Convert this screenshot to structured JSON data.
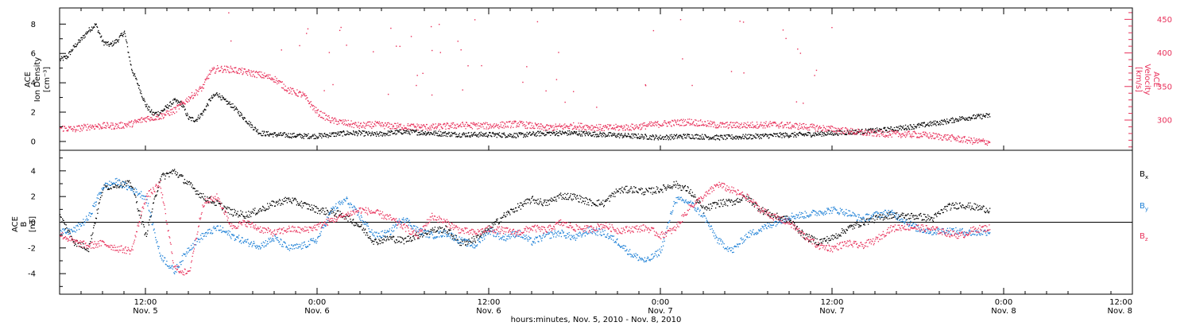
{
  "chart_data": [
    {
      "type": "scatter",
      "panel": "top",
      "ylabel_lines": [
        "ACE",
        "Ion Density",
        "[cm⁻³]"
      ],
      "ylim": [
        -0.6,
        9.1
      ],
      "yticks": [
        0,
        2,
        4,
        6,
        8
      ],
      "y2label_lines": [
        "ACE",
        "Velocity",
        "[km/s]"
      ],
      "y2lim": [
        255,
        467
      ],
      "y2ticks": [
        300,
        350,
        400,
        450
      ],
      "series": [
        {
          "label": "Ion Density",
          "axis": "left",
          "color": "#000000",
          "x": [
            0,
            1,
            2,
            3,
            4,
            5,
            6,
            7,
            8,
            9,
            10,
            11,
            12,
            13,
            14,
            15,
            16,
            17,
            18,
            19,
            20,
            21,
            22,
            23,
            24,
            25,
            26,
            27,
            28,
            30,
            32,
            34,
            36,
            38,
            40,
            42,
            44,
            46,
            48,
            52,
            56,
            60,
            64,
            68,
            72,
            76,
            80,
            84,
            88,
            92,
            96,
            100,
            104,
            108,
            112,
            116,
            120,
            122,
            124,
            126,
            128,
            130
          ],
          "values": [
            5.6,
            5.8,
            6.5,
            7.0,
            7.6,
            8.0,
            6.8,
            6.6,
            6.9,
            7.5,
            5.0,
            3.8,
            2.5,
            1.9,
            2.0,
            2.4,
            2.8,
            2.6,
            1.6,
            1.5,
            2.0,
            2.9,
            3.3,
            2.8,
            2.5,
            2.0,
            1.5,
            1.0,
            0.6,
            0.5,
            0.45,
            0.4,
            0.4,
            0.5,
            0.6,
            0.6,
            0.5,
            0.6,
            0.7,
            0.6,
            0.5,
            0.5,
            0.45,
            0.6,
            0.6,
            0.5,
            0.4,
            0.3,
            0.4,
            0.3,
            0.35,
            0.45,
            0.5,
            0.6,
            0.7,
            0.85,
            1.1,
            1.25,
            1.4,
            1.6,
            1.7,
            1.8
          ]
        },
        {
          "label": "Velocity",
          "axis": "right",
          "color": "#e8305a",
          "x": [
            0,
            2,
            4,
            6,
            8,
            10,
            12,
            14,
            16,
            18,
            20,
            21,
            22,
            24,
            26,
            28,
            30,
            32,
            34,
            36,
            38,
            40,
            42,
            44,
            46,
            48,
            52,
            56,
            60,
            64,
            68,
            72,
            76,
            80,
            84,
            88,
            92,
            96,
            100,
            104,
            108,
            112,
            116,
            120,
            124,
            128,
            130
          ],
          "values": [
            289,
            287,
            291,
            292,
            292,
            295,
            303,
            306,
            315,
            333,
            350,
            372,
            377,
            376,
            372,
            368,
            362,
            345,
            338,
            312,
            300,
            296,
            292,
            294,
            292,
            291,
            290,
            293,
            292,
            295,
            289,
            292,
            289,
            290,
            295,
            298,
            293,
            293,
            294,
            291,
            287,
            282,
            280,
            279,
            275,
            269,
            268
          ]
        }
      ]
    },
    {
      "type": "scatter",
      "panel": "bottom",
      "ylabel_lines": [
        "ACE",
        "B",
        "[nT]"
      ],
      "ylim": [
        -5.6,
        5.6
      ],
      "yticks": [
        -4,
        -2,
        0,
        2,
        4
      ],
      "zero_line": true,
      "legend": [
        "Bx",
        "By",
        "Bz"
      ],
      "legend_placement": "right",
      "series": [
        {
          "label": "Bx",
          "color": "#000000",
          "x": [
            0,
            2,
            4,
            6,
            8,
            10,
            12,
            14,
            16,
            18,
            20,
            22,
            24,
            26,
            28,
            30,
            32,
            34,
            36,
            38,
            40,
            42,
            44,
            46,
            48,
            50,
            52,
            54,
            56,
            58,
            60,
            62,
            64,
            66,
            68,
            70,
            72,
            74,
            76,
            78,
            80,
            82,
            84,
            86,
            88,
            90,
            92,
            94,
            96,
            98,
            100,
            102,
            104,
            106,
            108,
            110,
            112,
            114,
            116,
            118,
            120,
            122,
            124,
            126,
            128,
            130
          ],
          "values": [
            0.5,
            -1.5,
            -2.0,
            2.7,
            3.0,
            3.0,
            -1.0,
            3.5,
            4.0,
            3.0,
            2.0,
            1.5,
            0.8,
            0.6,
            1.0,
            1.5,
            1.8,
            1.4,
            1.0,
            0.8,
            0.5,
            -0.3,
            -1.5,
            -1.2,
            -1.4,
            -1.0,
            -0.6,
            -0.5,
            -1.6,
            -1.3,
            -0.5,
            0.5,
            1.2,
            1.8,
            1.5,
            2.1,
            2.0,
            1.6,
            1.5,
            2.5,
            2.6,
            2.4,
            2.6,
            3.0,
            2.5,
            1.0,
            1.5,
            1.6,
            2.0,
            1.0,
            0.5,
            0.2,
            -1.0,
            -1.5,
            -1.2,
            -0.5,
            0.0,
            0.3,
            0.6,
            0.5,
            0.5,
            0.3,
            1.2,
            1.4,
            1.2,
            1.0
          ]
        },
        {
          "label": "By",
          "color": "#1b7fd6",
          "x": [
            0,
            2,
            4,
            6,
            8,
            10,
            12,
            14,
            16,
            18,
            20,
            22,
            24,
            26,
            28,
            30,
            32,
            34,
            36,
            38,
            40,
            42,
            44,
            46,
            48,
            50,
            52,
            54,
            56,
            58,
            60,
            62,
            64,
            66,
            68,
            70,
            72,
            74,
            76,
            78,
            80,
            82,
            84,
            86,
            88,
            90,
            92,
            94,
            96,
            98,
            100,
            102,
            104,
            106,
            108,
            110,
            112,
            114,
            116,
            118,
            120,
            122,
            124,
            126,
            128,
            130
          ],
          "values": [
            -0.8,
            -0.6,
            0.4,
            2.8,
            3.2,
            2.6,
            2.0,
            -2.5,
            -3.8,
            -2.0,
            -1.0,
            -0.4,
            -1.0,
            -1.5,
            -1.8,
            -1.2,
            -2.0,
            -1.8,
            -1.3,
            1.0,
            1.8,
            0.4,
            -1.0,
            -0.8,
            0.4,
            -0.6,
            -1.0,
            -0.8,
            -1.4,
            -1.8,
            -0.6,
            -1.2,
            -0.8,
            -1.5,
            -1.0,
            -0.8,
            -1.2,
            -0.6,
            -0.8,
            -1.5,
            -2.5,
            -3.0,
            -2.2,
            1.8,
            1.6,
            0.5,
            -1.4,
            -2.2,
            -1.0,
            -0.5,
            0.0,
            0.5,
            0.6,
            0.8,
            1.0,
            0.8,
            0.3,
            0.6,
            0.8,
            0.2,
            -0.5,
            -0.7,
            -0.6,
            -0.7,
            -0.8,
            -0.7
          ]
        },
        {
          "label": "Bz",
          "color": "#e8305a",
          "x": [
            0,
            2,
            4,
            6,
            8,
            10,
            12,
            14,
            16,
            18,
            20,
            22,
            24,
            26,
            28,
            30,
            32,
            34,
            36,
            38,
            40,
            42,
            44,
            46,
            48,
            50,
            52,
            54,
            56,
            58,
            60,
            62,
            64,
            66,
            68,
            70,
            72,
            74,
            76,
            78,
            80,
            82,
            84,
            86,
            88,
            90,
            92,
            94,
            96,
            98,
            100,
            102,
            104,
            106,
            108,
            110,
            112,
            114,
            116,
            118,
            120,
            122,
            124,
            126,
            128,
            130
          ],
          "values": [
            -0.9,
            -1.5,
            -1.8,
            -1.6,
            -2.0,
            -2.2,
            2.0,
            3.0,
            -3.5,
            -4.0,
            1.5,
            2.0,
            -0.3,
            0.0,
            -0.5,
            -0.8,
            -0.5,
            -0.6,
            -0.3,
            0.2,
            0.6,
            1.0,
            0.8,
            0.4,
            -0.3,
            -1.0,
            0.5,
            0.0,
            -0.6,
            -0.8,
            -0.5,
            -0.6,
            -0.8,
            -0.4,
            -0.6,
            0.0,
            -0.4,
            -0.5,
            -0.2,
            -0.6,
            -0.5,
            -0.4,
            -1.0,
            -0.5,
            1.2,
            2.0,
            3.0,
            2.5,
            2.0,
            1.0,
            0.4,
            0.0,
            -1.0,
            -1.8,
            -2.0,
            -1.6,
            -1.8,
            -1.4,
            -0.5,
            -0.3,
            -0.4,
            -0.5,
            -0.8,
            -1.0,
            -0.5,
            -0.4
          ]
        }
      ]
    }
  ],
  "time_axis": {
    "xlim": [
      0,
      150
    ],
    "ticks": [
      {
        "x": 12,
        "top": "12:00",
        "bottom": "Nov. 5"
      },
      {
        "x": 36,
        "top": "0:00",
        "bottom": "Nov. 6"
      },
      {
        "x": 60,
        "top": "12:00",
        "bottom": "Nov. 6"
      },
      {
        "x": 84,
        "top": "0:00",
        "bottom": "Nov. 7"
      },
      {
        "x": 108,
        "top": "12:00",
        "bottom": "Nov. 7"
      },
      {
        "x": 132,
        "top": "0:00",
        "bottom": "Nov. 8"
      },
      {
        "x": 156,
        "top": "12:00",
        "bottom": "Nov. 8"
      }
    ],
    "xlabel": "hours:minutes, Nov.  5, 2010 - Nov.  8, 2010"
  },
  "legend_labels": {
    "bx": {
      "main": "B",
      "sub": "x"
    },
    "by": {
      "main": "B",
      "sub": "y"
    },
    "bz": {
      "main": "B",
      "sub": "z"
    }
  },
  "colors": {
    "black": "#000000",
    "blue": "#1b7fd6",
    "red": "#e8305a"
  }
}
